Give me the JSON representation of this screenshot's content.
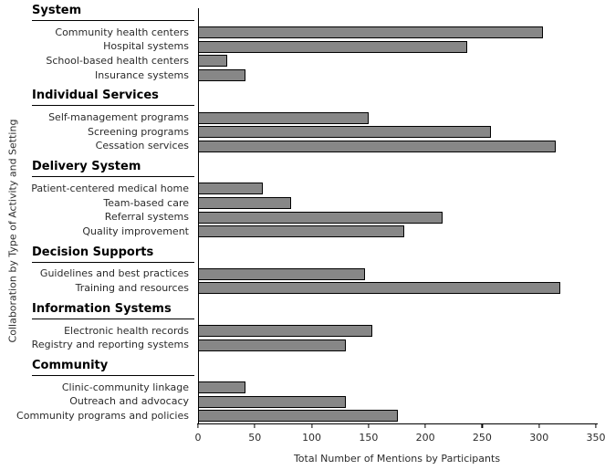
{
  "chart_data": {
    "type": "bar",
    "orientation": "horizontal",
    "title": "",
    "xlabel": "Total Number of Mentions by Participants",
    "ylabel": "Collaboration by Type of Activity and Setting",
    "xlim": [
      0,
      350
    ],
    "xticks": [
      0,
      50,
      100,
      150,
      200,
      250,
      300,
      350
    ],
    "grid": false,
    "legend": false,
    "bar_color": "#878787",
    "bar_border_color": "#000000",
    "groups": [
      {
        "header": "System",
        "items": [
          {
            "label": "Community health centers",
            "value": 303
          },
          {
            "label": "Hospital systems",
            "value": 237
          },
          {
            "label": "School-based health centers",
            "value": 26
          },
          {
            "label": "Insurance systems",
            "value": 42
          }
        ]
      },
      {
        "header": "Individual Services",
        "items": [
          {
            "label": "Self-management programs",
            "value": 150
          },
          {
            "label": "Screening programs",
            "value": 258
          },
          {
            "label": "Cessation services",
            "value": 315
          }
        ]
      },
      {
        "header": "Delivery System",
        "items": [
          {
            "label": "Patient-centered medical home",
            "value": 57
          },
          {
            "label": "Team-based care",
            "value": 82
          },
          {
            "label": "Referral systems",
            "value": 215
          },
          {
            "label": "Quality improvement",
            "value": 181
          }
        ]
      },
      {
        "header": "Decision Supports",
        "items": [
          {
            "label": "Guidelines and best practices",
            "value": 147
          },
          {
            "label": "Training and resources",
            "value": 319
          }
        ]
      },
      {
        "header": "Information Systems",
        "items": [
          {
            "label": "Electronic health records",
            "value": 153
          },
          {
            "label": "Registry and reporting systems",
            "value": 130
          }
        ]
      },
      {
        "header": "Community",
        "items": [
          {
            "label": "Clinic-community linkage",
            "value": 42
          },
          {
            "label": "Outreach and advocacy",
            "value": 130
          },
          {
            "label": "Community programs and policies",
            "value": 176
          }
        ]
      }
    ]
  }
}
